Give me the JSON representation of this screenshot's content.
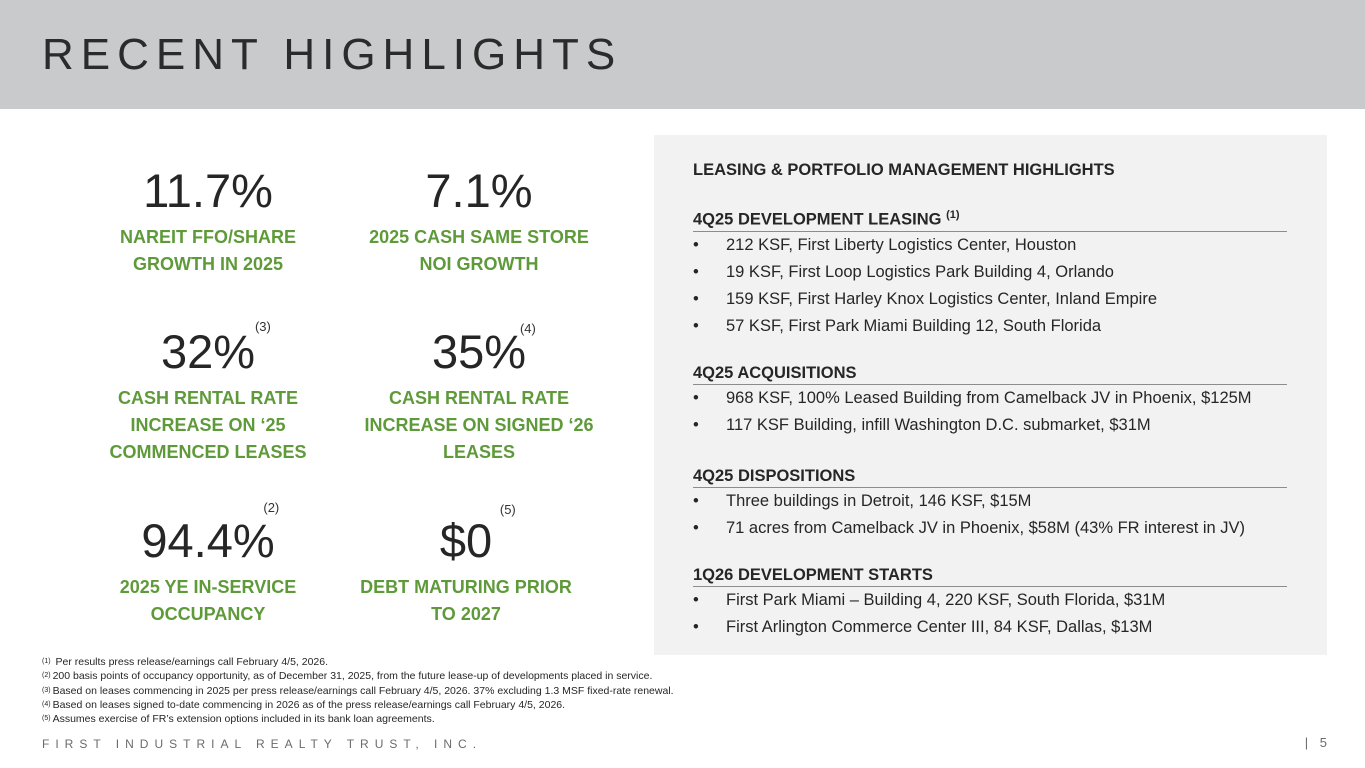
{
  "title": "RECENT HIGHLIGHTS",
  "metrics": [
    {
      "value": "11.7%",
      "note": "",
      "label": "NAREIT FFO/SHARE GROWTH IN 2025"
    },
    {
      "value": "7.1%",
      "note": "",
      "label": "2025 CASH SAME STORE NOI GROWTH"
    },
    {
      "value": "32%",
      "note": "(3)",
      "label": "CASH RENTAL RATE INCREASE ON ‘25 COMMENCED LEASES"
    },
    {
      "value": "35%",
      "note": "(4)",
      "label": "CASH RENTAL RATE INCREASE ON SIGNED ‘26 LEASES"
    },
    {
      "value": "94.4%",
      "note": "(2)",
      "label": "2025 YE IN-SERVICE OCCUPANCY"
    },
    {
      "value": "$0",
      "note": "(5)",
      "label": "DEBT MATURING PRIOR TO 2027"
    }
  ],
  "panel": {
    "title": "LEASING & PORTFOLIO MANAGEMENT HIGHLIGHTS",
    "sections": [
      {
        "heading": "4Q25 DEVELOPMENT LEASING",
        "note": "(1)",
        "items": [
          "212 KSF, First Liberty Logistics Center, Houston",
          "19 KSF, First Loop Logistics Park Building 4, Orlando",
          "159 KSF, First Harley Knox Logistics Center, Inland Empire",
          "57 KSF, First Park Miami Building 12, South Florida"
        ]
      },
      {
        "heading": "4Q25 ACQUISITIONS",
        "note": "",
        "items": [
          "968 KSF, 100% Leased Building from Camelback JV in Phoenix, $125M",
          "117 KSF Building, infill Washington D.C. submarket, $31M"
        ]
      },
      {
        "heading": "4Q25 DISPOSITIONS",
        "note": "",
        "items": [
          "Three buildings in Detroit, 146 KSF, $15M",
          "71 acres from Camelback JV in Phoenix, $58M (43% FR interest in JV)"
        ]
      },
      {
        "heading": "1Q26 DEVELOPMENT STARTS",
        "note": "",
        "items": [
          "First Park Miami – Building 4, 220 KSF, South Florida, $31M",
          "First Arlington Commerce Center III, 84 KSF, Dallas, $13M"
        ]
      }
    ]
  },
  "footnotes": [
    {
      "mark": "(1)",
      "text": " Per results press release/earnings call February 4/5, 2026."
    },
    {
      "mark": "(2)",
      "text": "200 basis points of occupancy opportunity, as of December 31, 2025, from the future lease-up of developments placed in service."
    },
    {
      "mark": "(3)",
      "text": "Based on leases commencing in 2025 per press release/earnings call February 4/5, 2026. 37% excluding 1.3 MSF fixed-rate renewal."
    },
    {
      "mark": "(4)",
      "text": "Based on leases signed to-date commencing in 2026 as of the press release/earnings call February 4/5, 2026."
    },
    {
      "mark": "(5)",
      "text": "Assumes exercise of FR’s extension options included in its bank loan agreements."
    }
  ],
  "footer": {
    "company": "FIRST INDUSTRIAL REALTY TRUST, INC.",
    "page": "|  5"
  }
}
